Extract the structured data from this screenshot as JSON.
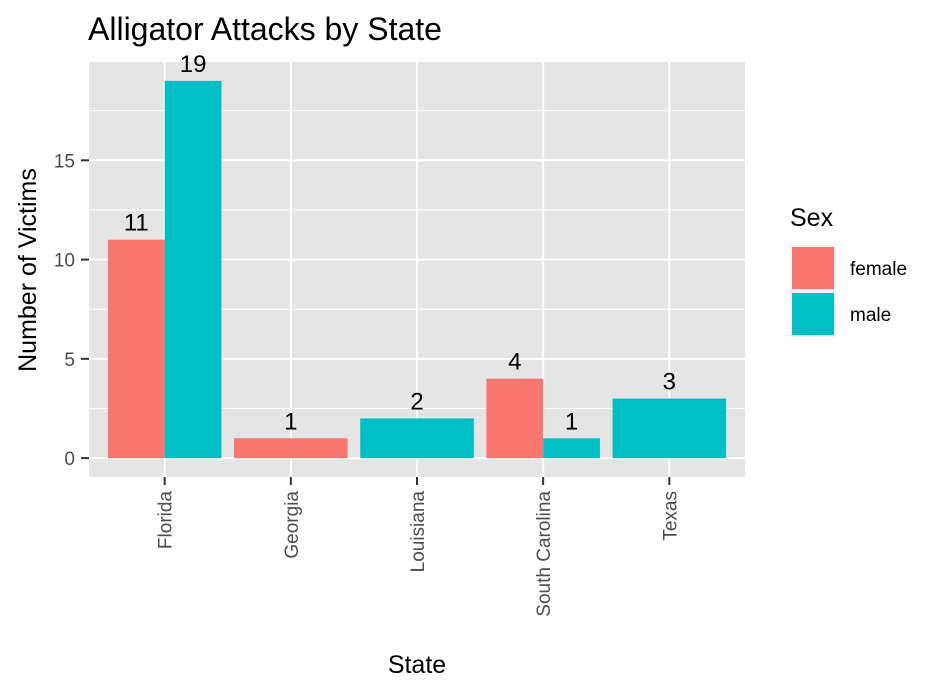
{
  "chart_data": {
    "type": "bar",
    "title": "Alligator Attacks by State",
    "xlabel": "State",
    "ylabel": "Number of Victims",
    "categories": [
      "Florida",
      "Georgia",
      "Louisiana",
      "South Carolina",
      "Texas"
    ],
    "y_ticks": [
      0,
      5,
      10,
      15
    ],
    "ylim": [
      -0.95,
      19.95
    ],
    "bars": [
      {
        "category": "Florida",
        "series": "female",
        "value": 11
      },
      {
        "category": "Florida",
        "series": "male",
        "value": 19
      },
      {
        "category": "Georgia",
        "series": "female",
        "value": 1
      },
      {
        "category": "Louisiana",
        "series": "male",
        "value": 2
      },
      {
        "category": "South Carolina",
        "series": "female",
        "value": 4
      },
      {
        "category": "South Carolina",
        "series": "male",
        "value": 1
      },
      {
        "category": "Texas",
        "series": "male",
        "value": 3
      }
    ],
    "legend": {
      "title": "Sex",
      "placement": "right",
      "entries": [
        {
          "name": "female",
          "color": "#F8766D"
        },
        {
          "name": "male",
          "color": "#00BFC4"
        }
      ]
    },
    "grid": true,
    "panel_background": "#EBEBEB",
    "bar_colors": {
      "female": "#F8766D",
      "male": "#00BFC4"
    }
  }
}
